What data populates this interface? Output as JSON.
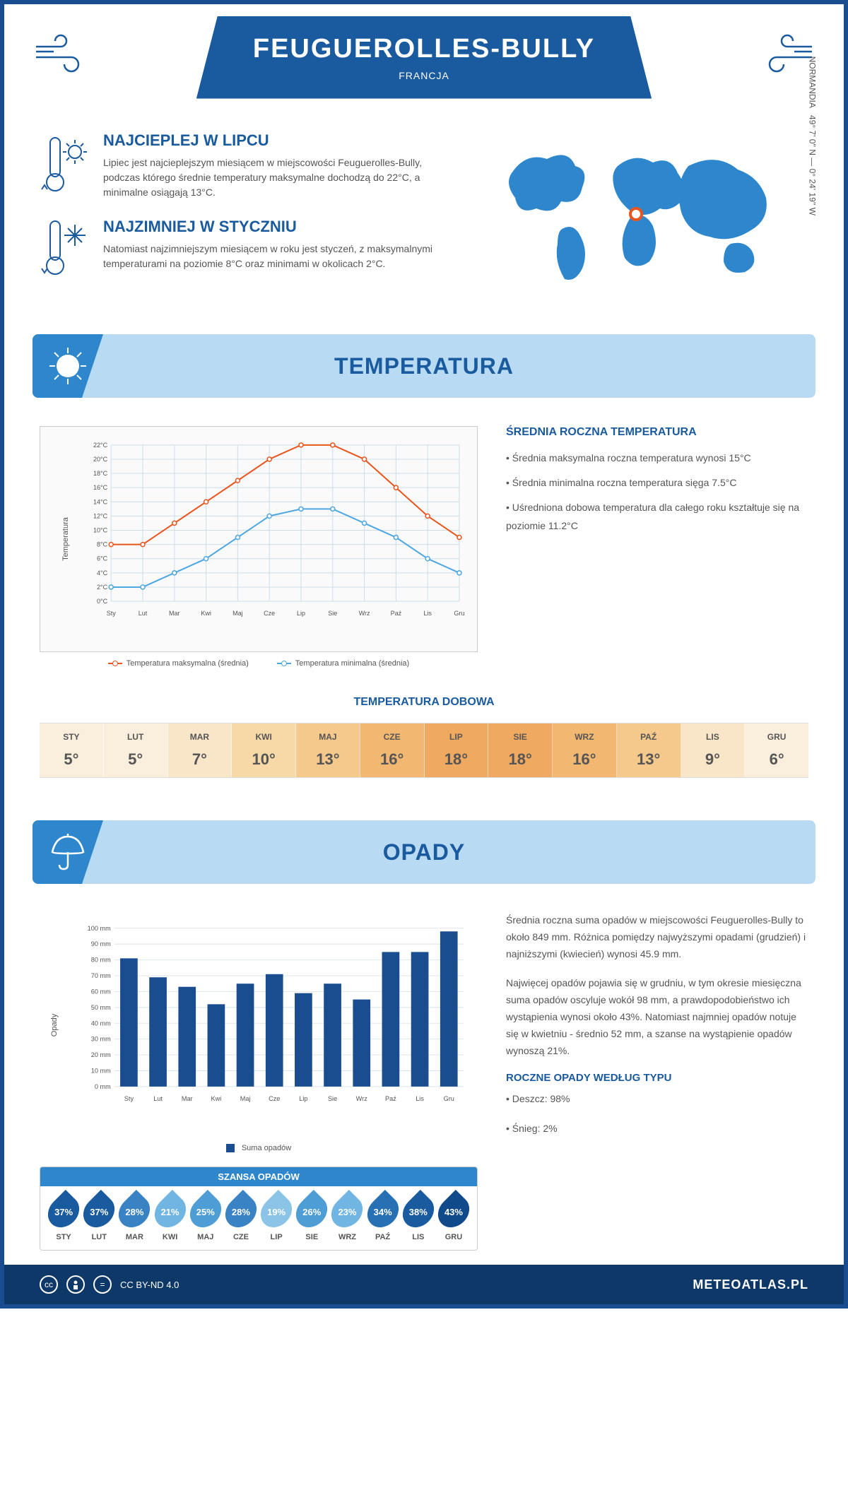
{
  "header": {
    "title": "FEUGUEROLLES-BULLY",
    "country": "FRANCJA"
  },
  "coords": {
    "text": "49° 7' 0'' N — 0° 24' 19'' W",
    "region": "NORMANDIA"
  },
  "intro": {
    "hot": {
      "title": "NAJCIEPLEJ W LIPCU",
      "body": "Lipiec jest najcieplejszym miesiącem w miejscowości Feuguerolles-Bully, podczas którego średnie temperatury maksymalne dochodzą do 22°C, a minimalne osiągają 13°C."
    },
    "cold": {
      "title": "NAJZIMNIEJ W STYCZNIU",
      "body": "Natomiast najzimniejszym miesiącem w roku jest styczeń, z maksymalnymi temperaturami na poziomie 8°C oraz minimami w okolicach 2°C."
    }
  },
  "temperatura": {
    "section_title": "TEMPERATURA",
    "info_title": "ŚREDNIA ROCZNA TEMPERATURA",
    "bullets": [
      "• Średnia maksymalna roczna temperatura wynosi 15°C",
      "• Średnia minimalna roczna temperatura sięga 7.5°C",
      "• Uśredniona dobowa temperatura dla całego roku kształtuje się na poziomie 11.2°C"
    ],
    "chart": {
      "type": "line",
      "months": [
        "Sty",
        "Lut",
        "Mar",
        "Kwi",
        "Maj",
        "Cze",
        "Lip",
        "Sie",
        "Wrz",
        "Paź",
        "Lis",
        "Gru"
      ],
      "max_series": [
        8,
        8,
        11,
        14,
        17,
        20,
        22,
        22,
        20,
        16,
        12,
        9
      ],
      "min_series": [
        2,
        2,
        4,
        6,
        9,
        12,
        13,
        13,
        11,
        9,
        6,
        4
      ],
      "max_color": "#e8551e",
      "min_color": "#4ea7e0",
      "ylabel": "Temperatura",
      "ylim": [
        0,
        22
      ],
      "ytick_step": 2,
      "grid_color": "#ccdde8",
      "legend_max": "Temperatura maksymalna (średnia)",
      "legend_min": "Temperatura minimalna (średnia)"
    },
    "daily": {
      "title": "TEMPERATURA DOBOWA",
      "months": [
        "STY",
        "LUT",
        "MAR",
        "KWI",
        "MAJ",
        "CZE",
        "LIP",
        "SIE",
        "WRZ",
        "PAŹ",
        "LIS",
        "GRU"
      ],
      "values": [
        "5°",
        "5°",
        "7°",
        "10°",
        "13°",
        "16°",
        "18°",
        "18°",
        "16°",
        "13°",
        "9°",
        "6°"
      ],
      "colors": [
        "#faeedd",
        "#faeedd",
        "#f9e5c8",
        "#f7d9a8",
        "#f5c88b",
        "#f2b872",
        "#efa960",
        "#efa960",
        "#f2b872",
        "#f5c88b",
        "#f9e5c8",
        "#faeedd"
      ]
    }
  },
  "opady": {
    "section_title": "OPADY",
    "paragraphs": [
      "Średnia roczna suma opadów w miejscowości Feuguerolles-Bully to około 849 mm. Różnica pomiędzy najwyższymi opadami (grudzień) i najniższymi (kwiecień) wynosi 45.9 mm.",
      "Najwięcej opadów pojawia się w grudniu, w tym okresie miesięczna suma opadów oscyluje wokół 98 mm, a prawdopodobieństwo ich wystąpienia wynosi około 43%. Natomiast najmniej opadów notuje się w kwietniu - średnio 52 mm, a szanse na wystąpienie opadów wynoszą 21%."
    ],
    "type_title": "ROCZNE OPADY WEDŁUG TYPU",
    "types": [
      "• Deszcz: 98%",
      "• Śnieg: 2%"
    ],
    "chart": {
      "type": "bar",
      "months": [
        "Sty",
        "Lut",
        "Mar",
        "Kwi",
        "Maj",
        "Cze",
        "Lip",
        "Sie",
        "Wrz",
        "Paź",
        "Lis",
        "Gru"
      ],
      "values": [
        81,
        69,
        63,
        52,
        65,
        71,
        59,
        65,
        55,
        85,
        85,
        98
      ],
      "bar_color": "#1a4d8f",
      "ylabel": "Opady",
      "ylim": [
        0,
        100
      ],
      "ytick_step": 10,
      "grid_color": "#dde5ec",
      "legend": "Suma opadów"
    },
    "chance": {
      "title": "SZANSA OPADÓW",
      "months": [
        "STY",
        "LUT",
        "MAR",
        "KWI",
        "MAJ",
        "CZE",
        "LIP",
        "SIE",
        "WRZ",
        "PAŹ",
        "LIS",
        "GRU"
      ],
      "values": [
        "37%",
        "37%",
        "28%",
        "21%",
        "25%",
        "28%",
        "19%",
        "26%",
        "23%",
        "34%",
        "38%",
        "43%"
      ],
      "colors": [
        "#1a5a9e",
        "#1a5a9e",
        "#3982c4",
        "#71b5e3",
        "#4f9dd5",
        "#3982c4",
        "#8cc4e8",
        "#4f9dd5",
        "#71b5e3",
        "#2670b3",
        "#1a5a9e",
        "#104a8a"
      ]
    }
  },
  "footer": {
    "license": "CC BY-ND 4.0",
    "site": "METEOATLAS.PL"
  },
  "colors": {
    "primary": "#1a5a9e",
    "light_blue": "#b8daf3",
    "mid_blue": "#2e87cd",
    "orange": "#e8551e"
  }
}
